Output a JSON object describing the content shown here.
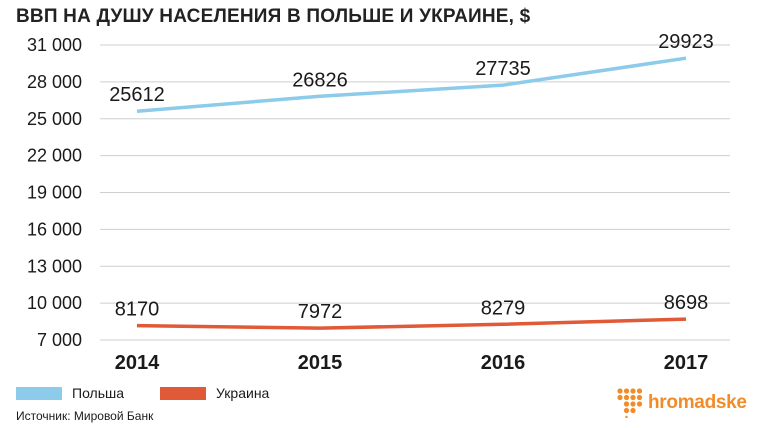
{
  "chart_data": {
    "type": "line",
    "title": "ВВП НА ДУШУ НАСЕЛЕНИЯ В ПОЛЬШЕ И УКРАИНЕ, $",
    "categories": [
      "2014",
      "2015",
      "2016",
      "2017"
    ],
    "series": [
      {
        "name": "Польша",
        "values": [
          25612,
          26826,
          27735,
          29923
        ],
        "color": "#8ccbea"
      },
      {
        "name": "Украина",
        "values": [
          8170,
          7972,
          8279,
          8698
        ],
        "color": "#e05a38"
      }
    ],
    "data_labels": {
      "Польша": [
        "25612",
        "26826",
        "27735",
        "29923"
      ],
      "Украина": [
        "8170",
        "7972",
        "8279",
        "8698"
      ]
    },
    "y_ticks": [
      31000,
      28000,
      25000,
      22000,
      19000,
      16000,
      13000,
      10000,
      7000
    ],
    "y_tick_labels": [
      "31 000",
      "28 000",
      "25 000",
      "22 000",
      "19 000",
      "16 000",
      "13 000",
      "10 000",
      "7 000"
    ],
    "ylim": [
      7000,
      31000
    ],
    "grid": true,
    "legend_position": "bottom-left",
    "xlabel": "",
    "ylabel": ""
  },
  "source": "Источник: Мировой Банк",
  "logo": {
    "text": "hromadske",
    "color": "#f28c28"
  }
}
